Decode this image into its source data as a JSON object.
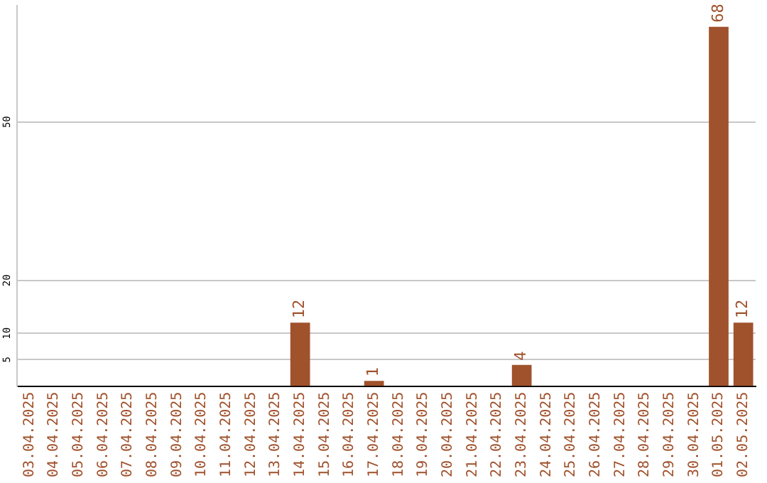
{
  "chart_data": {
    "type": "bar",
    "categories": [
      "03.04.2025",
      "04.04.2025",
      "05.04.2025",
      "06.04.2025",
      "07.04.2025",
      "08.04.2025",
      "09.04.2025",
      "10.04.2025",
      "11.04.2025",
      "12.04.2025",
      "13.04.2025",
      "14.04.2025",
      "15.04.2025",
      "16.04.2025",
      "17.04.2025",
      "18.04.2025",
      "19.04.2025",
      "20.04.2025",
      "21.04.2025",
      "22.04.2025",
      "23.04.2025",
      "24.04.2025",
      "25.04.2025",
      "26.04.2025",
      "27.04.2025",
      "28.04.2025",
      "29.04.2025",
      "30.04.2025",
      "01.05.2025",
      "02.05.2025"
    ],
    "values": [
      0,
      0,
      0,
      0,
      0,
      0,
      0,
      0,
      0,
      0,
      0,
      12,
      0,
      0,
      1,
      0,
      0,
      0,
      0,
      0,
      4,
      0,
      0,
      0,
      0,
      0,
      0,
      0,
      68,
      12
    ],
    "value_labels": [
      null,
      null,
      null,
      null,
      null,
      null,
      null,
      null,
      null,
      null,
      null,
      "12",
      null,
      null,
      "1",
      null,
      null,
      null,
      null,
      null,
      "4",
      null,
      null,
      null,
      null,
      null,
      null,
      null,
      "68",
      "12"
    ],
    "color": "#a0522d",
    "ylim": [
      0,
      72
    ],
    "yticks": [
      5,
      10,
      20,
      50
    ],
    "grid": "y",
    "legend": false
  }
}
